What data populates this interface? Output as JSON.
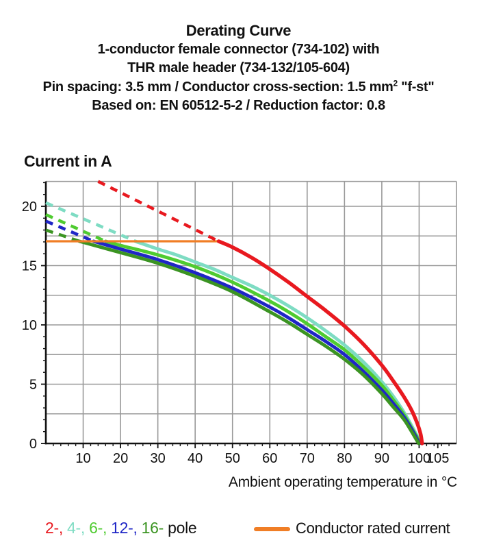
{
  "header": {
    "title": "Derating Curve",
    "line2": "1-conductor female connector (734-102) with",
    "line3": "THR male header (734-132/105-604)",
    "line4_pre": "Pin spacing: 3.5 mm / Conductor cross-section: 1.5 mm",
    "line4_sup": "2",
    "line4_post": " \"f-st\"",
    "line5": "Based on: EN 60512-5-2 / Reduction factor: 0.8"
  },
  "chart_data": {
    "type": "line",
    "xlabel": "Ambient operating temperature in °C",
    "ylabel": "Current in A",
    "xlim": [
      0,
      110
    ],
    "ylim": [
      0,
      22.1
    ],
    "grid": true,
    "x_tick_labels": [
      10,
      20,
      30,
      40,
      50,
      60,
      70,
      80,
      90,
      100,
      105
    ],
    "x_gridlines": [
      10,
      20,
      30,
      40,
      50,
      60,
      70,
      80,
      90,
      100
    ],
    "y_tick_labels": [
      0,
      5,
      10,
      15,
      20
    ],
    "y_gridlines": [
      2.5,
      5,
      7.5,
      10,
      12.5,
      15,
      17.5,
      20
    ],
    "x_minor_step": 2,
    "y_minor_step": 1,
    "rated_current_line": {
      "label": "Conductor rated current",
      "value_a": 17.05,
      "x_range": [
        0,
        46.3
      ],
      "color": "#F07E26"
    },
    "series": [
      {
        "name": "2-pole",
        "poles": 2,
        "color": "#E8191F",
        "dashed": [
          [
            14,
            22.1
          ],
          [
            46.3,
            17.05
          ]
        ],
        "solid": [
          [
            46.3,
            17.05
          ],
          [
            50,
            16.55
          ],
          [
            55,
            15.7
          ],
          [
            60,
            14.7
          ],
          [
            65,
            13.6
          ],
          [
            70,
            12.4
          ],
          [
            75,
            11.2
          ],
          [
            80,
            9.9
          ],
          [
            85,
            8.4
          ],
          [
            90,
            6.6
          ],
          [
            93,
            5.3
          ],
          [
            96,
            3.9
          ],
          [
            98,
            2.8
          ],
          [
            99.5,
            1.7
          ],
          [
            100.4,
            0.8
          ],
          [
            100.8,
            0
          ]
        ]
      },
      {
        "name": "4-pole",
        "poles": 4,
        "color": "#7EDCC3",
        "dashed": [
          [
            0,
            20.3
          ],
          [
            24,
            17.05
          ]
        ],
        "solid": [
          [
            24,
            17.05
          ],
          [
            30,
            16.4
          ],
          [
            35,
            15.9
          ],
          [
            40,
            15.3
          ],
          [
            45,
            14.7
          ],
          [
            50,
            14.0
          ],
          [
            55,
            13.3
          ],
          [
            60,
            12.5
          ],
          [
            65,
            11.6
          ],
          [
            70,
            10.6
          ],
          [
            75,
            9.5
          ],
          [
            80,
            8.3
          ],
          [
            85,
            6.9
          ],
          [
            90,
            5.2
          ],
          [
            93,
            4.0
          ],
          [
            96,
            2.6
          ],
          [
            98,
            1.5
          ],
          [
            99.5,
            0.6
          ],
          [
            100.2,
            0
          ]
        ]
      },
      {
        "name": "6-pole",
        "poles": 6,
        "color": "#4FCB30",
        "dashed": [
          [
            0,
            19.3
          ],
          [
            16,
            17.05
          ]
        ],
        "solid": [
          [
            16,
            17.05
          ],
          [
            20,
            16.7
          ],
          [
            30,
            15.9
          ],
          [
            40,
            14.9
          ],
          [
            50,
            13.6
          ],
          [
            60,
            12.0
          ],
          [
            65,
            11.1
          ],
          [
            70,
            10.1
          ],
          [
            75,
            9.0
          ],
          [
            80,
            7.9
          ],
          [
            85,
            6.5
          ],
          [
            90,
            4.9
          ],
          [
            93,
            3.7
          ],
          [
            96,
            2.4
          ],
          [
            98,
            1.3
          ],
          [
            99.5,
            0.5
          ],
          [
            100.1,
            0
          ]
        ]
      },
      {
        "name": "12-pole",
        "poles": 12,
        "color": "#1F26C6",
        "dashed": [
          [
            0,
            18.75
          ],
          [
            12.8,
            17.05
          ]
        ],
        "solid": [
          [
            12.8,
            17.05
          ],
          [
            20,
            16.4
          ],
          [
            30,
            15.5
          ],
          [
            40,
            14.4
          ],
          [
            50,
            13.1
          ],
          [
            60,
            11.5
          ],
          [
            65,
            10.6
          ],
          [
            70,
            9.6
          ],
          [
            75,
            8.6
          ],
          [
            80,
            7.5
          ],
          [
            85,
            6.1
          ],
          [
            90,
            4.5
          ],
          [
            93,
            3.4
          ],
          [
            96,
            2.2
          ],
          [
            98,
            1.2
          ],
          [
            99.4,
            0.4
          ],
          [
            100,
            0
          ]
        ]
      },
      {
        "name": "16-pole",
        "poles": 16,
        "color": "#3B9422",
        "dashed": [
          [
            0,
            18.0
          ],
          [
            9,
            17.05
          ]
        ],
        "solid": [
          [
            9,
            17.05
          ],
          [
            20,
            16.1
          ],
          [
            30,
            15.2
          ],
          [
            40,
            14.1
          ],
          [
            50,
            12.8
          ],
          [
            60,
            11.1
          ],
          [
            65,
            10.2
          ],
          [
            70,
            9.2
          ],
          [
            75,
            8.2
          ],
          [
            80,
            7.1
          ],
          [
            85,
            5.8
          ],
          [
            90,
            4.2
          ],
          [
            93,
            3.1
          ],
          [
            96,
            2.0
          ],
          [
            98,
            1.0
          ],
          [
            99.3,
            0.3
          ],
          [
            99.9,
            0
          ]
        ]
      }
    ]
  },
  "legend": {
    "poles": [
      {
        "label": "2-,",
        "color": "#E8191F"
      },
      {
        "label": "4-,",
        "color": "#7EDCC3"
      },
      {
        "label": "6-,",
        "color": "#4FCB30"
      },
      {
        "label": "12-,",
        "color": "#1F26C6"
      },
      {
        "label": "16-",
        "color": "#3B9422"
      }
    ],
    "pole_suffix": "pole",
    "rated": {
      "label": "Conductor rated current",
      "color": "#F07E26"
    }
  },
  "colors": {
    "grid": "#999999",
    "axis": "#111111",
    "background": "#ffffff"
  }
}
